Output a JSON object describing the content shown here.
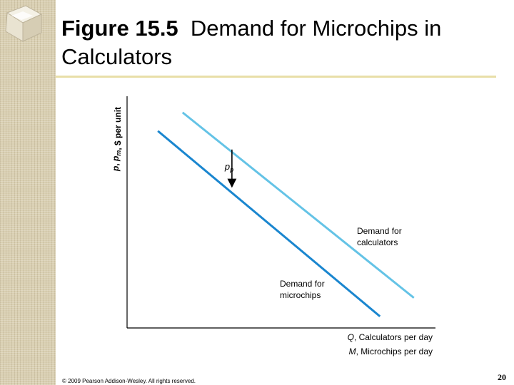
{
  "slide": {
    "figure_label": "Figure 15.5",
    "title_rest": "Demand for Microchips in Calculators",
    "footer": "© 2009 Pearson Addison-Wesley. All rights reserved.",
    "page_number": "20"
  },
  "colors": {
    "calculators_line": "#64c3e6",
    "microchips_line": "#1a86cf",
    "axis": "#000000",
    "rule": "#e8dfa8"
  },
  "chart_data": {
    "type": "line",
    "title": "Demand for Microchips in Calculators",
    "ylabel": "p, p_m, $ per unit",
    "xlabel": [
      "Q, Calculators per day",
      "M, Microchips per day"
    ],
    "series": [
      {
        "name": "Demand for calculators",
        "x": [
          0.18,
          0.93
        ],
        "y": [
          0.93,
          0.13
        ]
      },
      {
        "name": "Demand for microchips",
        "x": [
          0.1,
          0.82
        ],
        "y": [
          0.85,
          0.05
        ]
      }
    ],
    "annotation": {
      "label": "p_p",
      "from_y": 0.77,
      "to_y": 0.6,
      "x": 0.34
    },
    "xlim": [
      0,
      1
    ],
    "ylim": [
      0,
      1
    ],
    "grid": false
  }
}
